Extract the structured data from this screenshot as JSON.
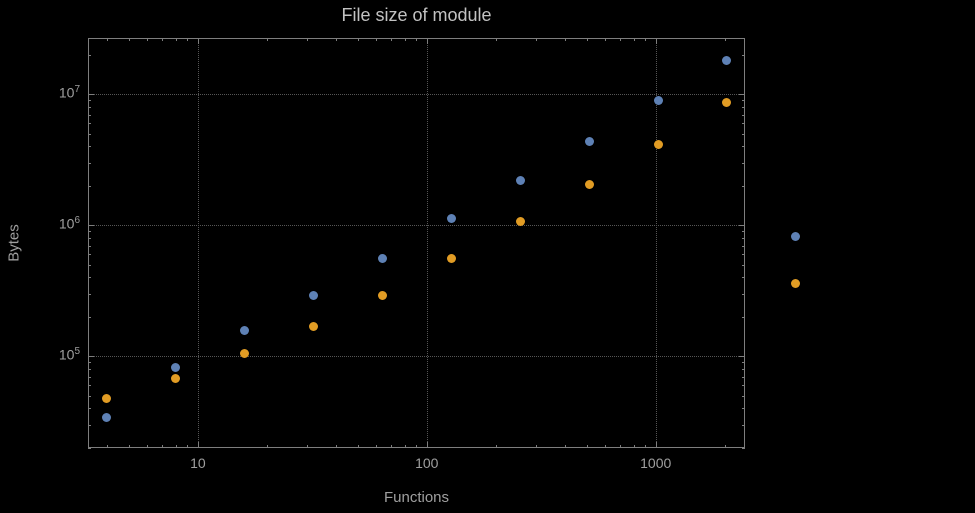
{
  "chart_data": {
    "type": "scatter",
    "title": "File size of module",
    "xlabel": "Functions",
    "ylabel": "Bytes",
    "x_scale": "log",
    "y_scale": "log",
    "grid": true,
    "legend": "none",
    "background_color": "#000000",
    "frame_color": "#7e7e7e",
    "grid_color": "#565656",
    "label_color": "#9f9f9f",
    "title_color": "#c2c2c2",
    "x": [
      4,
      8,
      16,
      32,
      64,
      128,
      256,
      512,
      1024,
      2048,
      4096
    ],
    "series": [
      {
        "name": "blue",
        "color": "#5e81b5",
        "values": [
          34000,
          82000,
          158000,
          290000,
          560000,
          1130000,
          2200000,
          4400000,
          9000000,
          18000000,
          820000
        ]
      },
      {
        "name": "orange",
        "color": "#e19c24",
        "values": [
          48000,
          68000,
          105000,
          170000,
          290000,
          560000,
          1070000,
          2050000,
          4150000,
          8700000,
          360000
        ]
      }
    ],
    "x_ticks": [
      10,
      100,
      1000
    ],
    "x_tick_labels": [
      "10",
      "100",
      "1000"
    ],
    "y_ticks": [
      100000,
      1000000,
      10000000
    ],
    "y_tick_exponents": [
      5,
      6,
      7
    ],
    "x_range_log": [
      0.52,
      3.39
    ],
    "y_range_log": [
      4.3,
      7.43
    ]
  }
}
